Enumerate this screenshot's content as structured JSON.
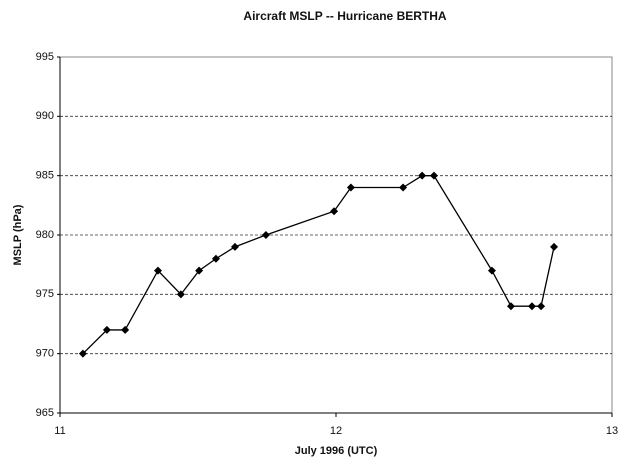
{
  "chart_data": {
    "type": "line",
    "title": "Aircraft MSLP -- Hurricane BERTHA",
    "x_label": "July 1996  (UTC)",
    "y_label": "MSLP (hPa)",
    "x": [
      11.083,
      11.17,
      11.236,
      11.355,
      11.438,
      11.504,
      11.565,
      11.634,
      11.746,
      11.993,
      12.054,
      12.243,
      12.312,
      12.355,
      12.565,
      12.634,
      12.71,
      12.743,
      12.79
    ],
    "series": [
      {
        "name": "MSLP",
        "color": "#000000",
        "values": [
          970,
          972,
          972,
          977,
          975,
          977,
          978,
          979,
          980,
          982,
          984,
          984,
          985,
          985,
          977,
          974,
          974,
          974,
          979
        ]
      }
    ],
    "xlim": [
      11,
      13
    ],
    "xticks": [
      11,
      12,
      13
    ],
    "ylim": [
      965,
      995
    ],
    "yticks": [
      965,
      970,
      975,
      980,
      985,
      990,
      995
    ],
    "grid": true
  }
}
